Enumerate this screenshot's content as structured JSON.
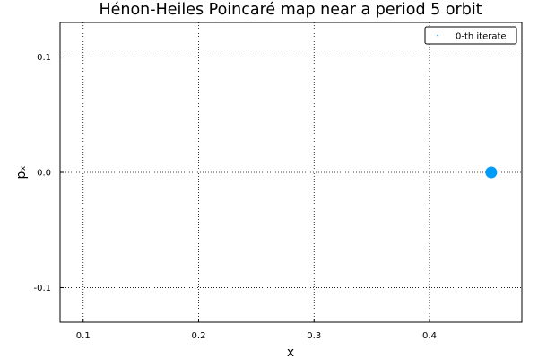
{
  "chart_data": {
    "type": "scatter",
    "title": "Hénon-Heiles Poincaré map near a period 5 orbit",
    "xlabel": "x",
    "ylabel": "pₓ",
    "xlim": [
      0.08,
      0.48
    ],
    "ylim": [
      -0.13,
      0.13
    ],
    "xticks": [
      0.1,
      0.2,
      0.3,
      0.4
    ],
    "xtick_labels": [
      "0.1",
      "0.2",
      "0.3",
      "0.4"
    ],
    "yticks": [
      0.1,
      0.0,
      -0.1
    ],
    "ytick_labels": [
      "0.1",
      "0.0",
      "-0.1"
    ],
    "grid": true,
    "grid_style": "dotted",
    "legend_position": "top-right",
    "series": [
      {
        "name": "0-th iterate",
        "color": "#009af9",
        "points": [
          {
            "x": 0.4535,
            "y": 0.0
          }
        ]
      }
    ]
  }
}
